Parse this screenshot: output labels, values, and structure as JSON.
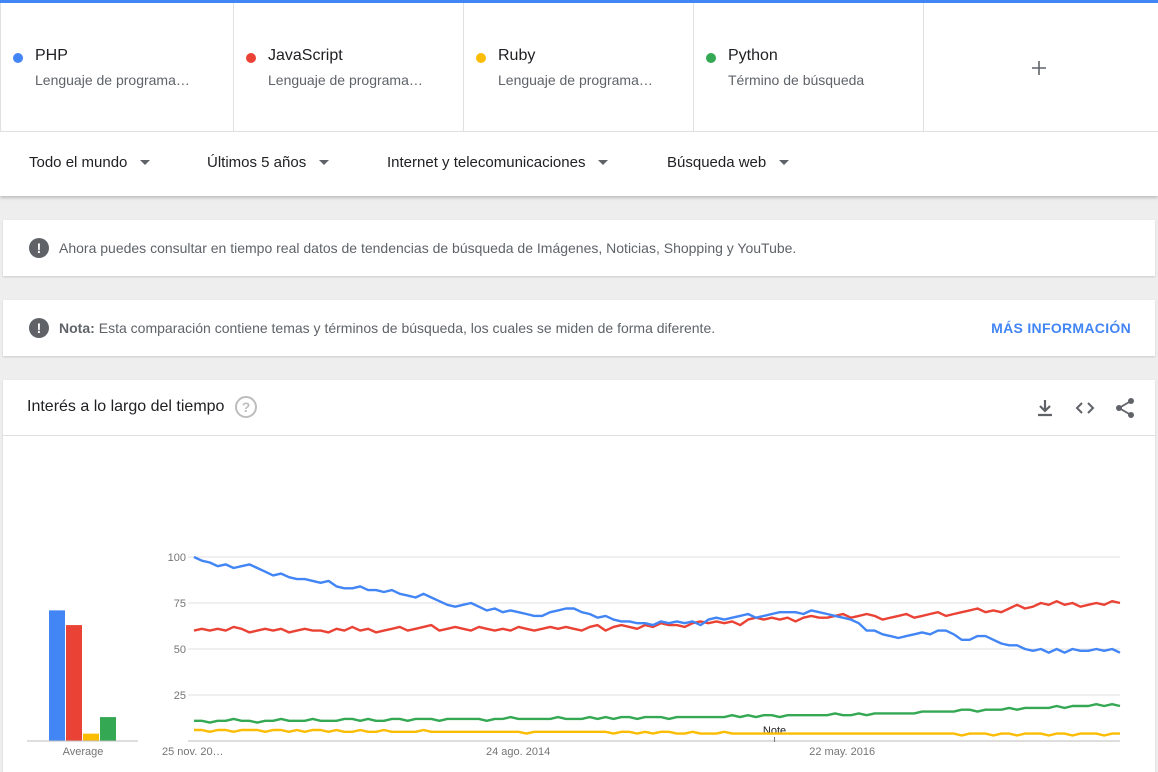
{
  "terms": [
    {
      "name": "PHP",
      "sub": "Lenguaje de programa…",
      "color": "#4285f4"
    },
    {
      "name": "JavaScript",
      "sub": "Lenguaje de programa…",
      "color": "#ea4335"
    },
    {
      "name": "Ruby",
      "sub": "Lenguaje de programa…",
      "color": "#fbbc04"
    },
    {
      "name": "Python",
      "sub": "Término de búsqueda",
      "color": "#34a853"
    }
  ],
  "add_icon": "plus-icon",
  "filters": {
    "region": "Todo el mundo",
    "period": "Últimos 5 años",
    "category": "Internet y telecomunicaciones",
    "search_type": "Búsqueda web"
  },
  "notice1": {
    "text": "Ahora puedes consultar en tiempo real datos de tendencias de búsqueda de Imágenes, Noticias, Shopping y YouTube."
  },
  "notice2": {
    "label": "Nota:",
    "text": "Esta comparación contiene temas y términos de búsqueda, los cuales se miden de forma diferente.",
    "link": "MÁS INFORMACIÓN"
  },
  "chart_header": {
    "title": "Interés a lo largo del tiempo",
    "help": "?",
    "icons": [
      "download-icon",
      "embed-icon",
      "share-icon"
    ]
  },
  "chart_data": {
    "type": "line",
    "title": "Interés a lo largo del tiempo",
    "ylim": [
      0,
      100
    ],
    "yticks": [
      25,
      50,
      75,
      100
    ],
    "grid": true,
    "x_start": "2012-11-25",
    "x_end": "2017-11-19",
    "xtick_labels": [
      {
        "date": "2012-11-25",
        "label": "25 nov. 20…"
      },
      {
        "date": "2014-08-24",
        "label": "24 ago. 2014"
      },
      {
        "date": "2016-05-22",
        "label": "22 may. 2016"
      }
    ],
    "annotation": {
      "date": "2016-01-10",
      "label": "Note"
    },
    "average_label": "Average",
    "averages": {
      "PHP": 71,
      "JavaScript": 63,
      "Ruby": 4,
      "Python": 13
    },
    "series": [
      {
        "name": "PHP",
        "color": "#4285f4",
        "values": [
          100,
          98,
          97,
          95,
          96,
          94,
          95,
          96,
          94,
          92,
          90,
          91,
          89,
          88,
          88,
          87,
          86,
          87,
          84,
          83,
          83,
          84,
          82,
          82,
          81,
          82,
          80,
          79,
          78,
          80,
          78,
          76,
          74,
          73,
          74,
          75,
          73,
          71,
          72,
          70,
          71,
          70,
          69,
          68,
          68,
          70,
          71,
          72,
          72,
          70,
          69,
          67,
          68,
          66,
          65,
          65,
          64,
          64,
          63,
          65,
          64,
          65,
          64,
          65,
          63,
          66,
          67,
          66,
          67,
          68,
          69,
          67,
          68,
          69,
          70,
          70,
          70,
          69,
          71,
          70,
          69,
          68,
          67,
          66,
          64,
          60,
          60,
          58,
          57,
          56,
          57,
          58,
          59,
          58,
          60,
          60,
          58,
          55,
          55,
          57,
          57,
          55,
          53,
          52,
          52,
          50,
          49,
          50,
          48,
          50,
          48,
          50,
          49,
          49,
          50,
          49,
          50,
          48
        ]
      },
      {
        "name": "JavaScript",
        "color": "#ea4335",
        "values": [
          60,
          61,
          60,
          61,
          60,
          62,
          61,
          59,
          60,
          61,
          60,
          61,
          59,
          60,
          61,
          60,
          60,
          59,
          61,
          60,
          62,
          60,
          61,
          59,
          60,
          61,
          62,
          60,
          61,
          62,
          63,
          60,
          61,
          62,
          61,
          60,
          62,
          61,
          60,
          61,
          60,
          62,
          61,
          60,
          61,
          62,
          61,
          62,
          61,
          60,
          62,
          63,
          60,
          62,
          63,
          62,
          61,
          63,
          62,
          64,
          63,
          63,
          62,
          64,
          65,
          64,
          65,
          64,
          65,
          63,
          66,
          67,
          66,
          67,
          66,
          67,
          65,
          67,
          68,
          67,
          67,
          68,
          69,
          67,
          68,
          69,
          68,
          66,
          67,
          68,
          69,
          67,
          68,
          69,
          70,
          68,
          69,
          70,
          71,
          72,
          70,
          71,
          70,
          72,
          74,
          72,
          73,
          75,
          74,
          76,
          74,
          75,
          73,
          74,
          75,
          74,
          76,
          75
        ]
      },
      {
        "name": "Ruby",
        "color": "#fbbc04",
        "values": [
          6,
          6,
          5,
          6,
          6,
          5,
          6,
          6,
          6,
          5,
          6,
          6,
          5,
          6,
          5,
          6,
          6,
          5,
          6,
          5,
          5,
          6,
          5,
          5,
          6,
          5,
          5,
          5,
          5,
          6,
          5,
          5,
          5,
          5,
          5,
          5,
          5,
          5,
          5,
          5,
          5,
          5,
          4,
          5,
          5,
          5,
          5,
          5,
          5,
          5,
          5,
          5,
          5,
          4,
          5,
          5,
          4,
          5,
          4,
          5,
          5,
          4,
          4,
          5,
          4,
          4,
          4,
          5,
          4,
          4,
          4,
          4,
          4,
          4,
          4,
          4,
          4,
          4,
          4,
          4,
          4,
          4,
          4,
          4,
          4,
          4,
          4,
          4,
          4,
          4,
          4,
          4,
          4,
          4,
          4,
          4,
          4,
          3,
          4,
          4,
          4,
          3,
          4,
          4,
          3,
          4,
          4,
          4,
          3,
          4,
          4,
          3,
          4,
          4,
          4,
          3,
          4,
          4
        ]
      },
      {
        "name": "Python",
        "color": "#34a853",
        "values": [
          11,
          11,
          10,
          11,
          11,
          12,
          11,
          11,
          10,
          11,
          11,
          12,
          11,
          11,
          11,
          12,
          11,
          11,
          11,
          12,
          12,
          11,
          12,
          11,
          11,
          12,
          12,
          11,
          12,
          12,
          12,
          11,
          12,
          12,
          12,
          12,
          12,
          11,
          12,
          12,
          13,
          12,
          12,
          12,
          12,
          12,
          13,
          12,
          12,
          12,
          13,
          12,
          13,
          12,
          13,
          13,
          12,
          13,
          13,
          13,
          12,
          13,
          13,
          13,
          13,
          13,
          13,
          13,
          14,
          13,
          14,
          13,
          14,
          14,
          13,
          14,
          14,
          14,
          14,
          14,
          14,
          15,
          14,
          14,
          15,
          14,
          15,
          15,
          15,
          15,
          15,
          15,
          16,
          16,
          16,
          16,
          16,
          17,
          17,
          16,
          17,
          17,
          17,
          18,
          17,
          18,
          18,
          18,
          18,
          19,
          18,
          19,
          19,
          19,
          20,
          19,
          20,
          19
        ]
      }
    ]
  }
}
